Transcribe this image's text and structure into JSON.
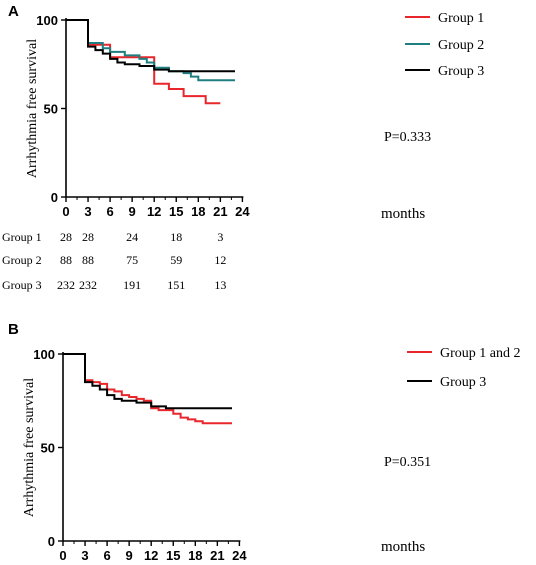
{
  "chart_data": [
    {
      "panel_label": "A",
      "type": "line",
      "subtype": "kaplan-meier step curve",
      "ylabel": "Arrhythmia free survival",
      "xlabel": "months",
      "x_ticks": [
        "0",
        "3",
        "6",
        "9",
        "12",
        "15",
        "18",
        "21",
        "24"
      ],
      "y_ticks": [
        "0",
        "50",
        "100"
      ],
      "xlim": [
        0,
        24
      ],
      "ylim": [
        0,
        100
      ],
      "grid": false,
      "legend_position": "top-right",
      "annotation": "P=0.333",
      "series": [
        {
          "name": "Group 1",
          "color": "#e8262b",
          "points": [
            [
              0,
              100
            ],
            [
              3,
              100
            ],
            [
              3,
              86
            ],
            [
              6,
              86
            ],
            [
              6,
              79
            ],
            [
              12,
              79
            ],
            [
              12,
              64
            ],
            [
              14,
              64
            ],
            [
              14,
              61
            ],
            [
              16,
              61
            ],
            [
              16,
              57
            ],
            [
              19,
              57
            ],
            [
              19,
              53
            ],
            [
              21,
              53
            ]
          ]
        },
        {
          "name": "Group 2",
          "color": "#1f7f80",
          "points": [
            [
              0,
              100
            ],
            [
              3,
              100
            ],
            [
              3,
              87
            ],
            [
              5,
              87
            ],
            [
              5,
              84
            ],
            [
              6,
              84
            ],
            [
              6,
              82
            ],
            [
              8,
              82
            ],
            [
              8,
              80
            ],
            [
              10,
              80
            ],
            [
              10,
              78
            ],
            [
              11,
              78
            ],
            [
              11,
              76
            ],
            [
              12,
              76
            ],
            [
              12,
              73
            ],
            [
              14,
              73
            ],
            [
              14,
              71
            ],
            [
              16,
              71
            ],
            [
              16,
              70
            ],
            [
              17,
              70
            ],
            [
              17,
              68
            ],
            [
              18,
              68
            ],
            [
              18,
              66
            ],
            [
              23,
              66
            ]
          ]
        },
        {
          "name": "Group 3",
          "color": "#000000",
          "points": [
            [
              0,
              100
            ],
            [
              3,
              100
            ],
            [
              3,
              85
            ],
            [
              4,
              85
            ],
            [
              4,
              83
            ],
            [
              5,
              83
            ],
            [
              5,
              81
            ],
            [
              6,
              81
            ],
            [
              6,
              78
            ],
            [
              7,
              78
            ],
            [
              7,
              76
            ],
            [
              8,
              76
            ],
            [
              8,
              75
            ],
            [
              10,
              75
            ],
            [
              10,
              74
            ],
            [
              12,
              74
            ],
            [
              12,
              72
            ],
            [
              14,
              72
            ],
            [
              14,
              71
            ],
            [
              23,
              71
            ]
          ]
        }
      ],
      "risk_table": {
        "columns": [
          "0",
          "3",
          "9",
          "15",
          "21"
        ],
        "rows": [
          {
            "label": "Group 1",
            "values": [
              "28",
              "28",
              "24",
              "18",
              "3"
            ]
          },
          {
            "label": "Group 2",
            "values": [
              "88",
              "88",
              "75",
              "59",
              "12"
            ]
          },
          {
            "label": "Group 3",
            "values": [
              "232",
              "232",
              "191",
              "151",
              "13"
            ]
          }
        ]
      }
    },
    {
      "panel_label": "B",
      "type": "line",
      "subtype": "kaplan-meier step curve",
      "ylabel": "Arrhythmia free survival",
      "xlabel": "months",
      "x_ticks": [
        "0",
        "3",
        "6",
        "9",
        "12",
        "15",
        "18",
        "21",
        "24"
      ],
      "y_ticks": [
        "0",
        "50",
        "100"
      ],
      "xlim": [
        0,
        24
      ],
      "ylim": [
        0,
        100
      ],
      "grid": false,
      "legend_position": "top-right",
      "annotation": "P=0.351",
      "series": [
        {
          "name": "Group 1 and 2",
          "color": "#e8262b",
          "points": [
            [
              0,
              100
            ],
            [
              3,
              100
            ],
            [
              3,
              86
            ],
            [
              4,
              86
            ],
            [
              4,
              85
            ],
            [
              5,
              85
            ],
            [
              5,
              84
            ],
            [
              6,
              84
            ],
            [
              6,
              81
            ],
            [
              7,
              81
            ],
            [
              7,
              80
            ],
            [
              8,
              80
            ],
            [
              8,
              78
            ],
            [
              9,
              78
            ],
            [
              9,
              77
            ],
            [
              10,
              77
            ],
            [
              10,
              76
            ],
            [
              11,
              76
            ],
            [
              11,
              75
            ],
            [
              12,
              75
            ],
            [
              12,
              71
            ],
            [
              13,
              71
            ],
            [
              13,
              70
            ],
            [
              15,
              70
            ],
            [
              15,
              68
            ],
            [
              16,
              68
            ],
            [
              16,
              66
            ],
            [
              17,
              66
            ],
            [
              17,
              65
            ],
            [
              18,
              65
            ],
            [
              18,
              64
            ],
            [
              19,
              64
            ],
            [
              19,
              63
            ],
            [
              23,
              63
            ]
          ]
        },
        {
          "name": "Group 3",
          "color": "#000000",
          "points": [
            [
              0,
              100
            ],
            [
              3,
              100
            ],
            [
              3,
              85
            ],
            [
              4,
              85
            ],
            [
              4,
              83
            ],
            [
              5,
              83
            ],
            [
              5,
              81
            ],
            [
              6,
              81
            ],
            [
              6,
              78
            ],
            [
              7,
              78
            ],
            [
              7,
              76
            ],
            [
              8,
              76
            ],
            [
              8,
              75
            ],
            [
              10,
              75
            ],
            [
              10,
              74
            ],
            [
              12,
              74
            ],
            [
              12,
              72
            ],
            [
              14,
              72
            ],
            [
              14,
              71
            ],
            [
              23,
              71
            ]
          ]
        }
      ]
    }
  ]
}
